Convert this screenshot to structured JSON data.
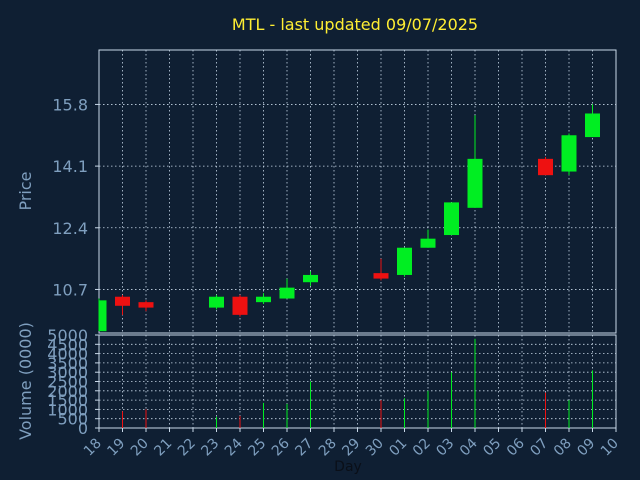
{
  "chart_data": {
    "type": "candlestick",
    "title": "MTL - last updated 09/07/2025",
    "xlabel": "Day",
    "price_ylabel": "Price",
    "volume_ylabel": "Volume (0000)",
    "price_ticks": [
      "10.7",
      "12.4",
      "14.1",
      "15.8"
    ],
    "price_tick_values": [
      10.7,
      12.4,
      14.1,
      15.8
    ],
    "price_ylim": [
      9.5,
      17.3
    ],
    "volume_ticks": [
      "0",
      "500",
      "1000",
      "1500",
      "2000",
      "2500",
      "3000",
      "3500",
      "4000",
      "4500",
      "5000"
    ],
    "volume_ylim": [
      0,
      5000
    ],
    "x_ticks": [
      "18",
      "19",
      "20",
      "21",
      "22",
      "23",
      "24",
      "25",
      "26",
      "27",
      "28",
      "29",
      "30",
      "01",
      "02",
      "03",
      "04",
      "05",
      "06",
      "07",
      "08",
      "09",
      "10"
    ],
    "grid": true,
    "candles": [
      {
        "day": "18",
        "open": 9.55,
        "high": 10.45,
        "low": 9.55,
        "close": 10.4,
        "volume": 0
      },
      {
        "day": "19",
        "open": 10.5,
        "high": 10.55,
        "low": 10.0,
        "close": 10.25,
        "volume": 900
      },
      {
        "day": "20",
        "open": 10.35,
        "high": 10.4,
        "low": 10.1,
        "close": 10.2,
        "volume": 1000
      },
      {
        "day": "23",
        "open": 10.2,
        "high": 10.55,
        "low": 10.15,
        "close": 10.5,
        "volume": 600
      },
      {
        "day": "24",
        "open": 10.5,
        "high": 10.55,
        "low": 9.95,
        "close": 10.0,
        "volume": 650
      },
      {
        "day": "25",
        "open": 10.35,
        "high": 10.6,
        "low": 10.3,
        "close": 10.5,
        "volume": 1350
      },
      {
        "day": "26",
        "open": 10.45,
        "high": 11.0,
        "low": 10.45,
        "close": 10.75,
        "volume": 1300
      },
      {
        "day": "27",
        "open": 10.9,
        "high": 11.2,
        "low": 10.8,
        "close": 11.1,
        "volume": 2500
      },
      {
        "day": "30",
        "open": 11.15,
        "high": 11.55,
        "low": 10.95,
        "close": 11.0,
        "volume": 1500
      },
      {
        "day": "01",
        "open": 11.1,
        "high": 11.85,
        "low": 11.05,
        "close": 11.85,
        "volume": 1600
      },
      {
        "day": "02",
        "open": 11.85,
        "high": 12.35,
        "low": 11.85,
        "close": 12.1,
        "volume": 2000
      },
      {
        "day": "03",
        "open": 12.2,
        "high": 13.1,
        "low": 12.2,
        "close": 13.1,
        "volume": 3000
      },
      {
        "day": "04",
        "open": 12.95,
        "high": 15.5,
        "low": 12.95,
        "close": 14.3,
        "volume": 4800
      },
      {
        "day": "07",
        "open": 14.3,
        "high": 14.35,
        "low": 13.85,
        "close": 13.85,
        "volume": 1900
      },
      {
        "day": "08",
        "open": 13.95,
        "high": 15.0,
        "low": 13.85,
        "close": 14.95,
        "volume": 1500
      },
      {
        "day": "09",
        "open": 14.9,
        "high": 15.8,
        "low": 14.9,
        "close": 15.55,
        "volume": 3100
      }
    ],
    "colors": {
      "background": "#0f1f33",
      "axis": "#c8d8e8",
      "grid": "#c8d8e8",
      "title": "#ffee33",
      "label": "#7f9fbf",
      "up": "#00ee22",
      "down": "#ee1111"
    }
  }
}
